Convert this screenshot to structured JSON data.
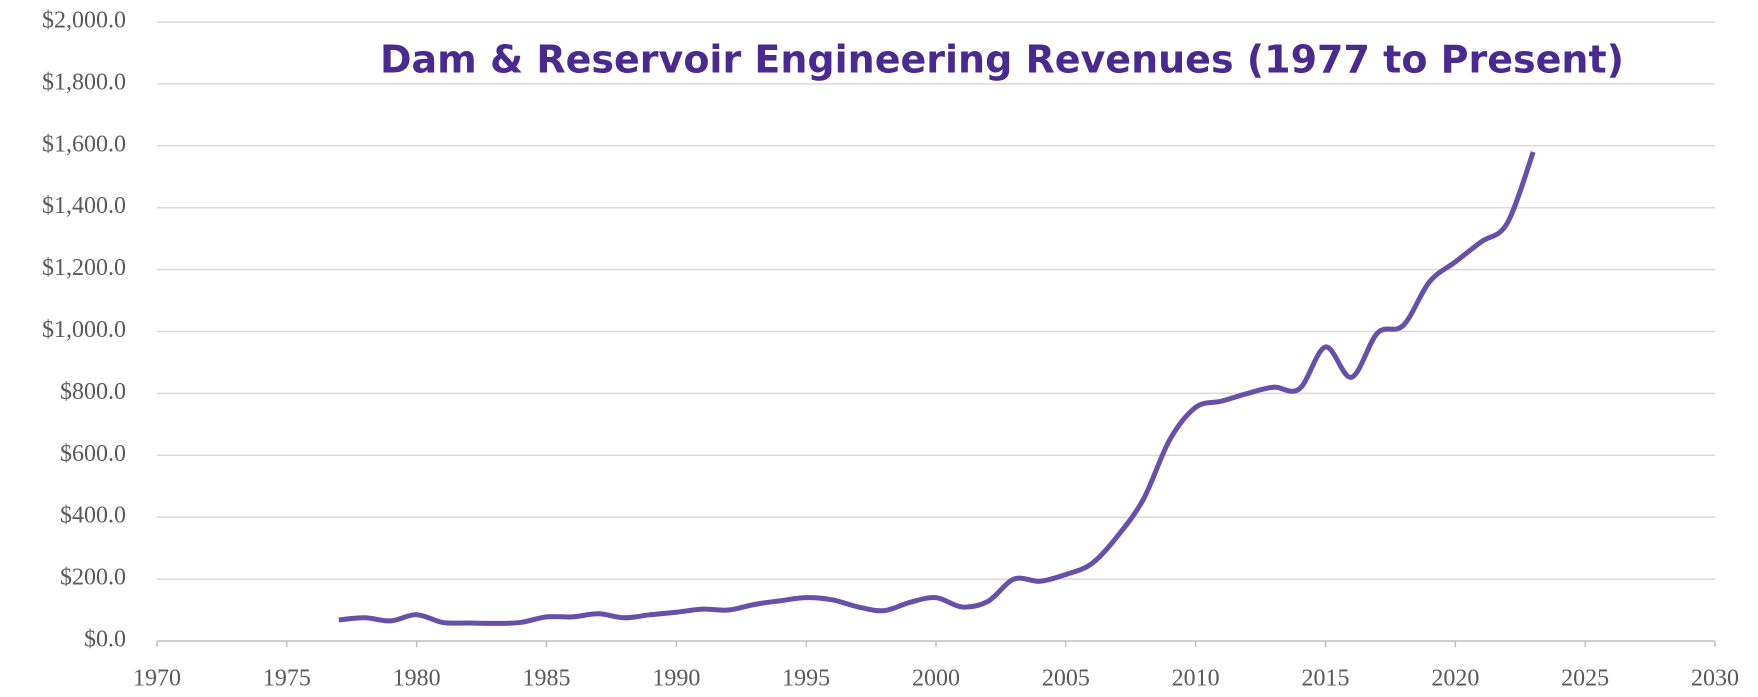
{
  "chart_data": {
    "type": "line",
    "title": "Dam & Reservoir Engineering Revenues (1977 to Present)",
    "x": [
      1977,
      1978,
      1979,
      1980,
      1981,
      1982,
      1983,
      1984,
      1985,
      1986,
      1987,
      1988,
      1989,
      1990,
      1991,
      1992,
      1993,
      1994,
      1995,
      1996,
      1997,
      1998,
      1999,
      2000,
      2001,
      2002,
      2003,
      2004,
      2005,
      2006,
      2007,
      2008,
      2009,
      2010,
      2011,
      2012,
      2013,
      2014,
      2015,
      2016,
      2017,
      2018,
      2019,
      2020,
      2021,
      2022,
      2023
    ],
    "series": [
      {
        "color": "#6650a8",
        "values": [
          68,
          75,
          65,
          85,
          60,
          58,
          57,
          60,
          78,
          78,
          88,
          75,
          85,
          93,
          103,
          100,
          118,
          130,
          140,
          133,
          110,
          98,
          125,
          140,
          110,
          128,
          200,
          193,
          215,
          250,
          340,
          460,
          650,
          755,
          775,
          800,
          820,
          815,
          950,
          852,
          995,
          1020,
          1160,
          1225,
          1290,
          1350,
          1580
        ]
      }
    ],
    "xlim": [
      1970,
      2030
    ],
    "xticks": [
      1970,
      1975,
      1980,
      1985,
      1990,
      1995,
      2000,
      2005,
      2010,
      2015,
      2020,
      2025,
      2030
    ],
    "ylim": [
      0,
      2000
    ],
    "yticks": [
      {
        "value": 0,
        "label": "$0.0"
      },
      {
        "value": 200,
        "label": "$200.0"
      },
      {
        "value": 400,
        "label": "$400.0"
      },
      {
        "value": 600,
        "label": "$600.0"
      },
      {
        "value": 800,
        "label": "$800.0"
      },
      {
        "value": 1000,
        "label": "$1,000.0"
      },
      {
        "value": 1200,
        "label": "$1,200.0"
      },
      {
        "value": 1400,
        "label": "$1,400.0"
      },
      {
        "value": 1600,
        "label": "$1,600.0"
      },
      {
        "value": 1800,
        "label": "$1,800.0"
      },
      {
        "value": 2000,
        "label": "$2,000.0"
      }
    ],
    "grid": true
  }
}
